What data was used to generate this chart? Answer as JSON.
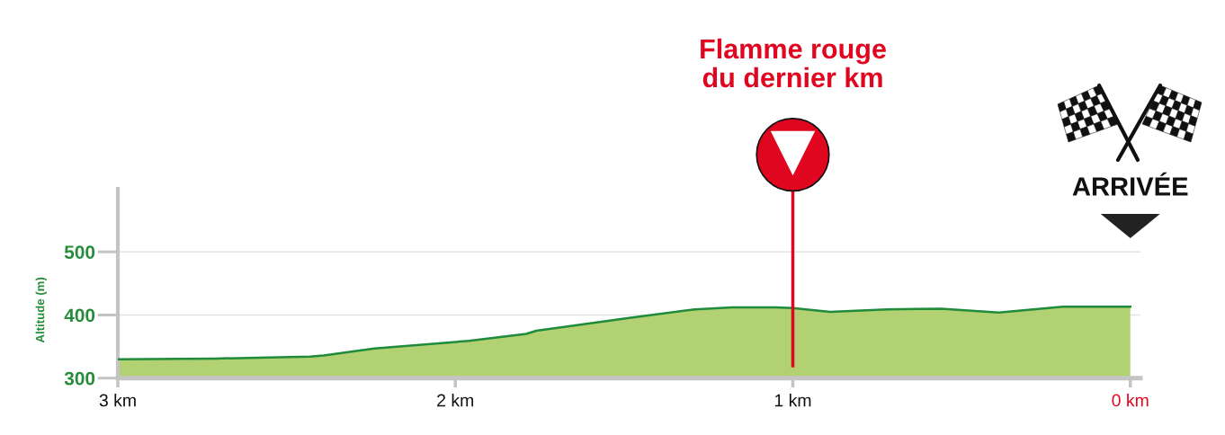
{
  "chart_data": {
    "type": "area",
    "ylabel": "Altitude (m)",
    "x": [
      3.0,
      2.71,
      2.43,
      2.39,
      2.24,
      1.96,
      1.79,
      1.76,
      1.49,
      1.29,
      1.18,
      1.05,
      1.0,
      0.89,
      0.72,
      0.56,
      0.39,
      0.2,
      0.0
    ],
    "series": [
      {
        "color": "#b2d173",
        "values": [
          330,
          331,
          334,
          336,
          347,
          359,
          370,
          375,
          395,
          409,
          412,
          412,
          411,
          405,
          409,
          410,
          404,
          413,
          413
        ]
      }
    ],
    "xlim": [
      3,
      -0.03
    ],
    "ylim": [
      300,
      600
    ],
    "xticks": [
      {
        "value": 3,
        "label": "3 km"
      },
      {
        "value": 2,
        "label": "2 km"
      },
      {
        "value": 1,
        "label": "1 km"
      },
      {
        "value": 0,
        "label": "0 km"
      }
    ],
    "yticks": [
      300,
      400,
      500
    ],
    "grid": "y",
    "legend": false,
    "ref_lines": [
      {
        "axis": "x",
        "value": 1,
        "label": "Flamme rouge du dernier km",
        "color": "#e0061f"
      }
    ],
    "annotations": [
      "ARRIVÉE"
    ]
  }
}
